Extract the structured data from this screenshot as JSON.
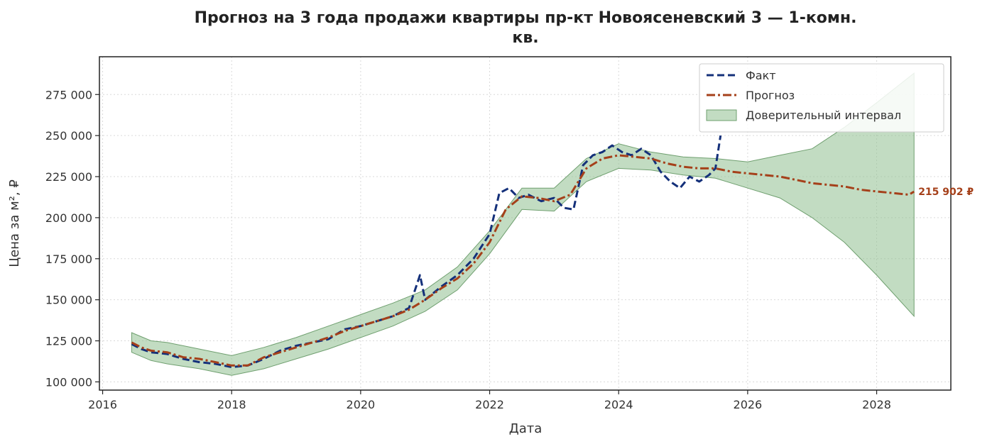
{
  "colors": {
    "fact": "#14307a",
    "forecast": "#a5401a",
    "ci_fill": "#8fbf8f",
    "ci_edge": "#6f9f6f",
    "end_label": "#a5401a"
  },
  "chart_data": {
    "type": "line",
    "title_line1": "Прогноз на 3 года продажи квартиры  пр-кт Новоясеневский 3 — 1-комн.",
    "title_line2": "кв.",
    "xlabel": "Дата",
    "ylabel": "Цена за м², ₽",
    "xlim": [
      2015.95,
      2029.15
    ],
    "ylim": [
      95000,
      298000
    ],
    "x_ticks": [
      2016,
      2018,
      2020,
      2022,
      2024,
      2026,
      2028
    ],
    "x_tick_labels": [
      "2016",
      "2018",
      "2020",
      "2022",
      "2024",
      "2026",
      "2028"
    ],
    "y_ticks": [
      100000,
      125000,
      150000,
      175000,
      200000,
      225000,
      250000,
      275000
    ],
    "y_tick_labels": [
      "100 000",
      "125 000",
      "150 000",
      "175 000",
      "200 000",
      "225 000",
      "250 000",
      "275 000"
    ],
    "grid": true,
    "legend_position": "top-right",
    "legend": [
      "Факт",
      "Прогноз",
      "Доверительный интервал"
    ],
    "end_label": "215 902 ₽",
    "series": [
      {
        "name": "Факт",
        "x": [
          2016.45,
          2016.6,
          2016.75,
          2017.0,
          2017.25,
          2017.5,
          2017.75,
          2018.0,
          2018.25,
          2018.5,
          2018.75,
          2019.0,
          2019.25,
          2019.5,
          2019.75,
          2020.0,
          2020.25,
          2020.5,
          2020.75,
          2020.92,
          2021.0,
          2021.25,
          2021.5,
          2021.75,
          2022.0,
          2022.15,
          2022.3,
          2022.45,
          2022.6,
          2022.8,
          2023.0,
          2023.15,
          2023.3,
          2023.45,
          2023.6,
          2023.75,
          2023.9,
          2024.05,
          2024.2,
          2024.35,
          2024.5,
          2024.65,
          2024.8,
          2024.95,
          2025.1,
          2025.25,
          2025.4,
          2025.5,
          2025.58
        ],
        "values": [
          123000,
          120000,
          118000,
          117000,
          114000,
          112000,
          111000,
          109000,
          110000,
          114000,
          119000,
          122000,
          124000,
          126000,
          132000,
          134000,
          137000,
          140000,
          145000,
          165000,
          150000,
          158000,
          165000,
          175000,
          190000,
          215000,
          218000,
          212000,
          214000,
          210000,
          212000,
          206000,
          205000,
          232000,
          238000,
          240000,
          244000,
          240000,
          238000,
          242000,
          238000,
          228000,
          222000,
          218000,
          225000,
          222000,
          226000,
          230000,
          250000
        ]
      },
      {
        "name": "Прогноз",
        "x": [
          2016.45,
          2016.6,
          2016.75,
          2017.0,
          2017.25,
          2017.5,
          2017.75,
          2018.0,
          2018.25,
          2018.5,
          2018.75,
          2019.0,
          2019.25,
          2019.5,
          2019.75,
          2020.0,
          2020.25,
          2020.5,
          2020.75,
          2021.0,
          2021.25,
          2021.5,
          2021.75,
          2022.0,
          2022.25,
          2022.5,
          2022.75,
          2023.0,
          2023.25,
          2023.5,
          2023.75,
          2024.0,
          2024.25,
          2024.5,
          2024.75,
          2025.0,
          2025.25,
          2025.5,
          2025.75,
          2026.0,
          2026.25,
          2026.5,
          2026.75,
          2027.0,
          2027.25,
          2027.5,
          2027.75,
          2028.0,
          2028.25,
          2028.5,
          2028.58
        ],
        "values": [
          124000,
          121000,
          119000,
          118000,
          115000,
          114000,
          112000,
          110000,
          110000,
          115000,
          118000,
          121000,
          124000,
          127000,
          131000,
          134000,
          137000,
          140000,
          144000,
          150000,
          157000,
          163000,
          172000,
          185000,
          205000,
          213000,
          212000,
          210000,
          214000,
          230000,
          236000,
          238000,
          237000,
          236000,
          233000,
          231000,
          230000,
          230000,
          228000,
          227000,
          226000,
          225000,
          223000,
          221000,
          220000,
          219000,
          217000,
          216000,
          215000,
          214000,
          215902
        ]
      }
    ],
    "ci": {
      "name": "Доверительный интервал",
      "x": [
        2016.45,
        2016.75,
        2017.0,
        2017.5,
        2018.0,
        2018.5,
        2019.0,
        2019.5,
        2020.0,
        2020.5,
        2021.0,
        2021.5,
        2022.0,
        2022.5,
        2023.0,
        2023.5,
        2024.0,
        2024.5,
        2025.0,
        2025.5,
        2026.0,
        2026.5,
        2027.0,
        2027.5,
        2028.0,
        2028.58
      ],
      "lower": [
        118000,
        113000,
        111000,
        108000,
        104000,
        108000,
        114000,
        120000,
        127000,
        134000,
        143000,
        156000,
        178000,
        205000,
        204000,
        222000,
        230000,
        229000,
        226000,
        224000,
        218000,
        212000,
        200000,
        185000,
        165000,
        140000
      ],
      "upper": [
        130000,
        125000,
        124000,
        120000,
        116000,
        121000,
        127000,
        134000,
        141000,
        148000,
        156000,
        170000,
        192000,
        218000,
        218000,
        236000,
        245000,
        240000,
        237000,
        236000,
        234000,
        238000,
        242000,
        255000,
        270000,
        288000
      ]
    }
  }
}
